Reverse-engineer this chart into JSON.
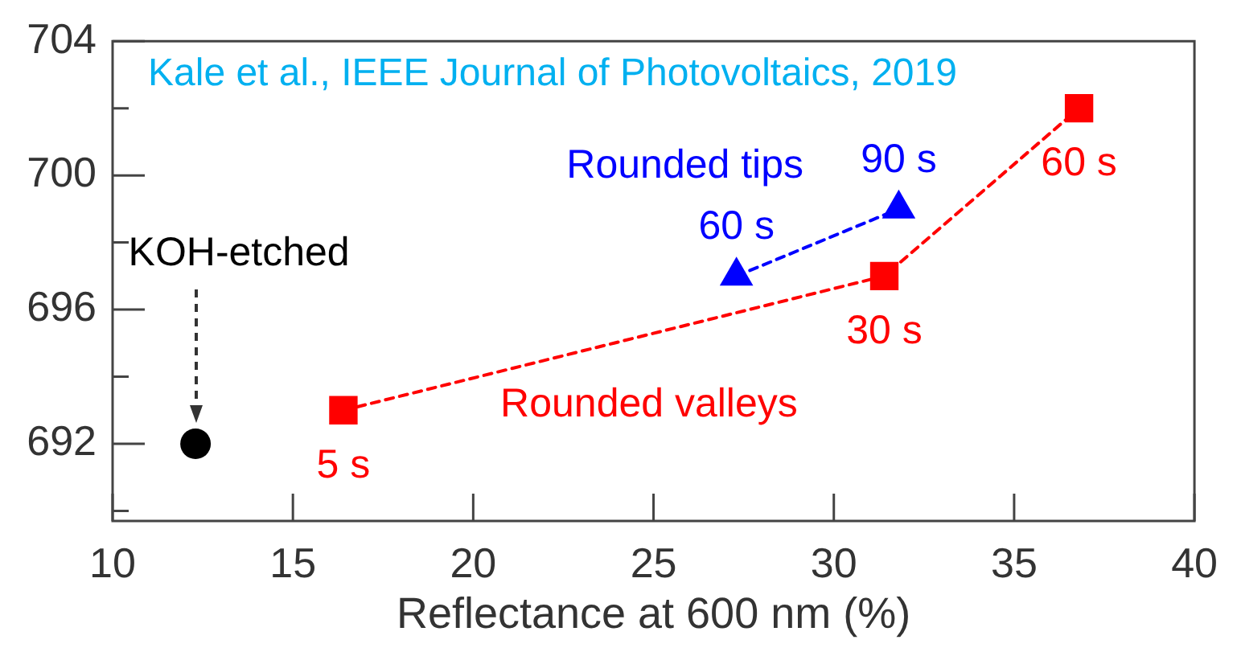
{
  "chart_data": {
    "type": "line",
    "xlabel": "Reflectance at 600 nm (%)",
    "xlim": [
      10,
      40
    ],
    "xticks": [
      10,
      15,
      20,
      25,
      30,
      35,
      40
    ],
    "ylim": [
      689.7,
      704
    ],
    "yticks": [
      {
        "value": 690,
        "label": null
      },
      692,
      {
        "value": 694,
        "label": null
      },
      696,
      {
        "value": 698,
        "label": null
      },
      700,
      {
        "value": 702,
        "label": null
      },
      704
    ],
    "series": [
      {
        "name": "Rounded valleys",
        "color": "#ff0000",
        "marker": "square",
        "line_style": "dashed",
        "x": [
          16.4,
          31.4,
          36.8
        ],
        "values": [
          693,
          697,
          702
        ]
      },
      {
        "name": "Rounded tips",
        "color": "#0000ff",
        "marker": "triangle",
        "line_style": "dashed",
        "x": [
          27.3,
          31.8
        ],
        "values": [
          697,
          699
        ]
      },
      {
        "name": "KOH-etched",
        "type": "scatter",
        "color": "#000000",
        "marker": "circle",
        "x": [
          12.3
        ],
        "values": [
          692
        ]
      }
    ],
    "annotations": [
      "Kale et al., IEEE Journal of Photovoltaics, 2019",
      {
        "text": "5 s",
        "x": 16.4,
        "y": 693
      },
      {
        "text": "30 s",
        "x": 31.4,
        "y": 697
      },
      {
        "text": "60 s",
        "x": 36.8,
        "y": 702
      },
      {
        "text": "60 s",
        "x": 27.3,
        "y": 697
      },
      {
        "text": "90 s",
        "x": 31.8,
        "y": 699
      }
    ]
  }
}
